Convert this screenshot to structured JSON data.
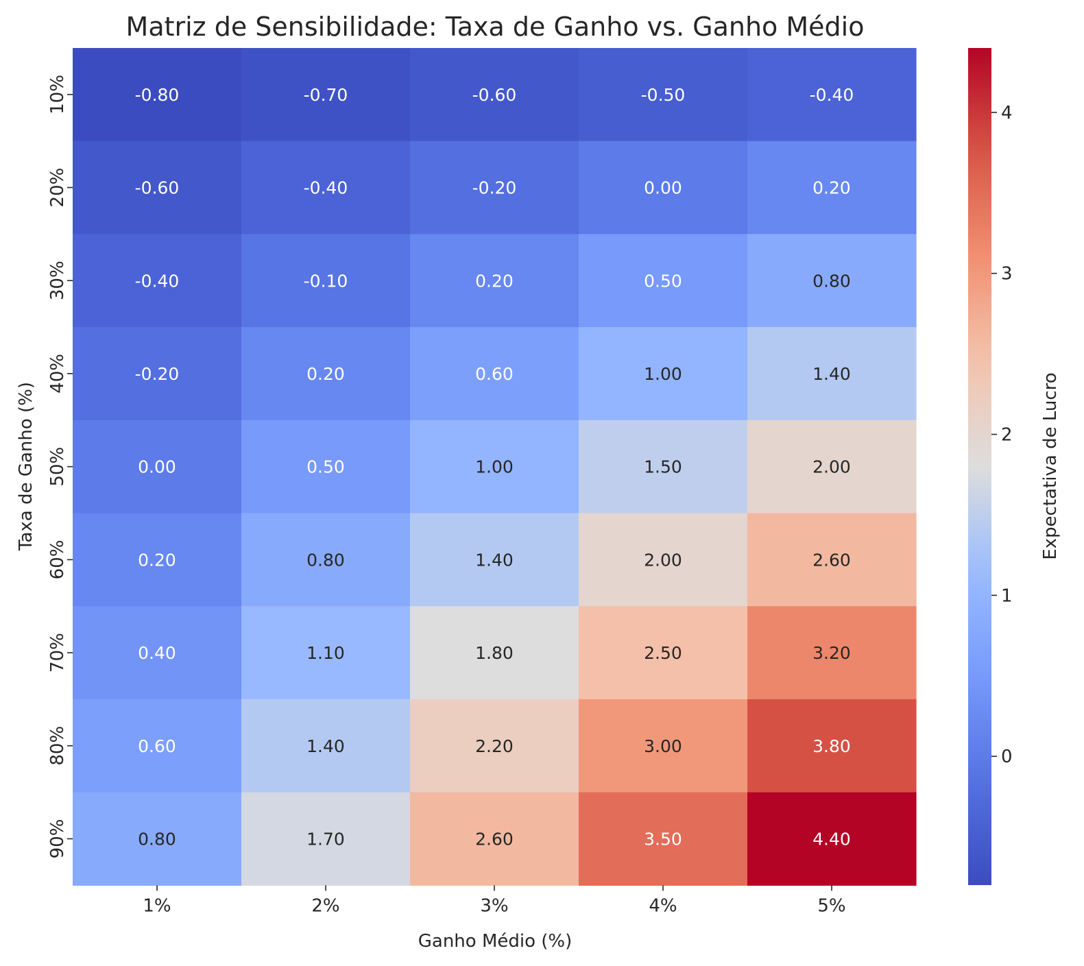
{
  "chart_data": {
    "type": "heatmap",
    "title": "Matriz de Sensibilidade: Taxa de Ganho vs. Ganho Médio",
    "xlabel": "Ganho Médio (%)",
    "ylabel": "Taxa de Ganho (%)",
    "x_categories": [
      "1%",
      "2%",
      "3%",
      "4%",
      "5%"
    ],
    "y_categories": [
      "10%",
      "20%",
      "30%",
      "40%",
      "50%",
      "60%",
      "70%",
      "80%",
      "90%"
    ],
    "values": [
      [
        -0.8,
        -0.7,
        -0.6,
        -0.5,
        -0.4
      ],
      [
        -0.6,
        -0.4,
        -0.2,
        0.0,
        0.2
      ],
      [
        -0.4,
        -0.1,
        0.2,
        0.5,
        0.8
      ],
      [
        -0.2,
        0.2,
        0.6,
        1.0,
        1.4
      ],
      [
        0.0,
        0.5,
        1.0,
        1.5,
        2.0
      ],
      [
        0.2,
        0.8,
        1.4,
        2.0,
        2.6
      ],
      [
        0.4,
        1.1,
        1.8,
        2.5,
        3.2
      ],
      [
        0.6,
        1.4,
        2.2,
        3.0,
        3.8
      ],
      [
        0.8,
        1.7,
        2.6,
        3.5,
        4.4
      ]
    ],
    "value_labels": [
      [
        "-0.80",
        "-0.70",
        "-0.60",
        "-0.50",
        "-0.40"
      ],
      [
        "-0.60",
        "-0.40",
        "-0.20",
        "0.00",
        "0.20"
      ],
      [
        "-0.40",
        "-0.10",
        "0.20",
        "0.50",
        "0.80"
      ],
      [
        "-0.20",
        "0.20",
        "0.60",
        "1.00",
        "1.40"
      ],
      [
        "0.00",
        "0.50",
        "1.00",
        "1.50",
        "2.00"
      ],
      [
        "0.20",
        "0.80",
        "1.40",
        "2.00",
        "2.60"
      ],
      [
        "0.40",
        "1.10",
        "1.80",
        "2.50",
        "3.20"
      ],
      [
        "0.60",
        "1.40",
        "2.20",
        "3.00",
        "3.80"
      ],
      [
        "0.80",
        "1.70",
        "2.60",
        "3.50",
        "4.40"
      ]
    ],
    "colorbar": {
      "label": "Expectativa de Lucro",
      "range": [
        -0.8,
        4.4
      ],
      "ticks": [
        0,
        1,
        2,
        3,
        4
      ],
      "tick_labels": [
        "0",
        "1",
        "2",
        "3",
        "4"
      ],
      "colormap": "coolwarm"
    },
    "grid": false,
    "legend": "none"
  }
}
